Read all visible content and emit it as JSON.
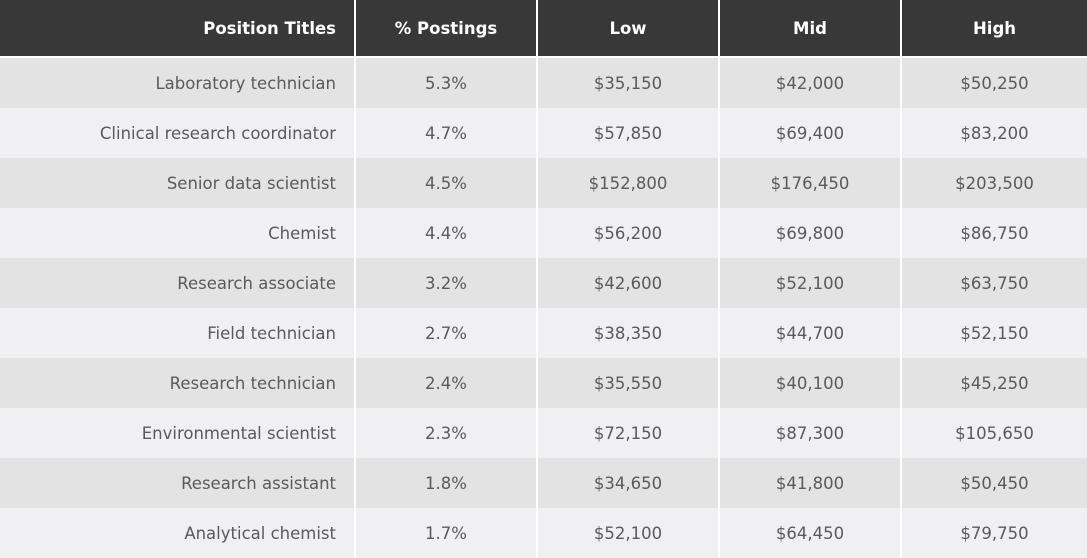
{
  "table": {
    "header": [
      "Position Titles",
      "% Postings",
      "Low",
      "Mid",
      "High"
    ],
    "rows": [
      [
        "Laboratory technician",
        "5.3%",
        "$35,150",
        "$42,000",
        "$50,250"
      ],
      [
        "Clinical research coordinator",
        "4.7%",
        "$57,850",
        "$69,400",
        "$83,200"
      ],
      [
        "Senior data scientist",
        "4.5%",
        "$152,800",
        "$176,450",
        "$203,500"
      ],
      [
        "Chemist",
        "4.4%",
        "$56,200",
        "$69,800",
        "$86,750"
      ],
      [
        "Research associate",
        "3.2%",
        "$42,600",
        "$52,100",
        "$63,750"
      ],
      [
        "Field technician",
        "2.7%",
        "$38,350",
        "$44,700",
        "$52,150"
      ],
      [
        "Research technician",
        "2.4%",
        "$35,550",
        "$40,100",
        "$45,250"
      ],
      [
        "Environmental scientist",
        "2.3%",
        "$72,150",
        "$87,300",
        "$105,650"
      ],
      [
        "Research assistant",
        "1.8%",
        "$34,650",
        "$41,800",
        "$50,450"
      ],
      [
        "Analytical chemist",
        "1.7%",
        "$52,100",
        "$64,450",
        "$79,750"
      ]
    ]
  }
}
